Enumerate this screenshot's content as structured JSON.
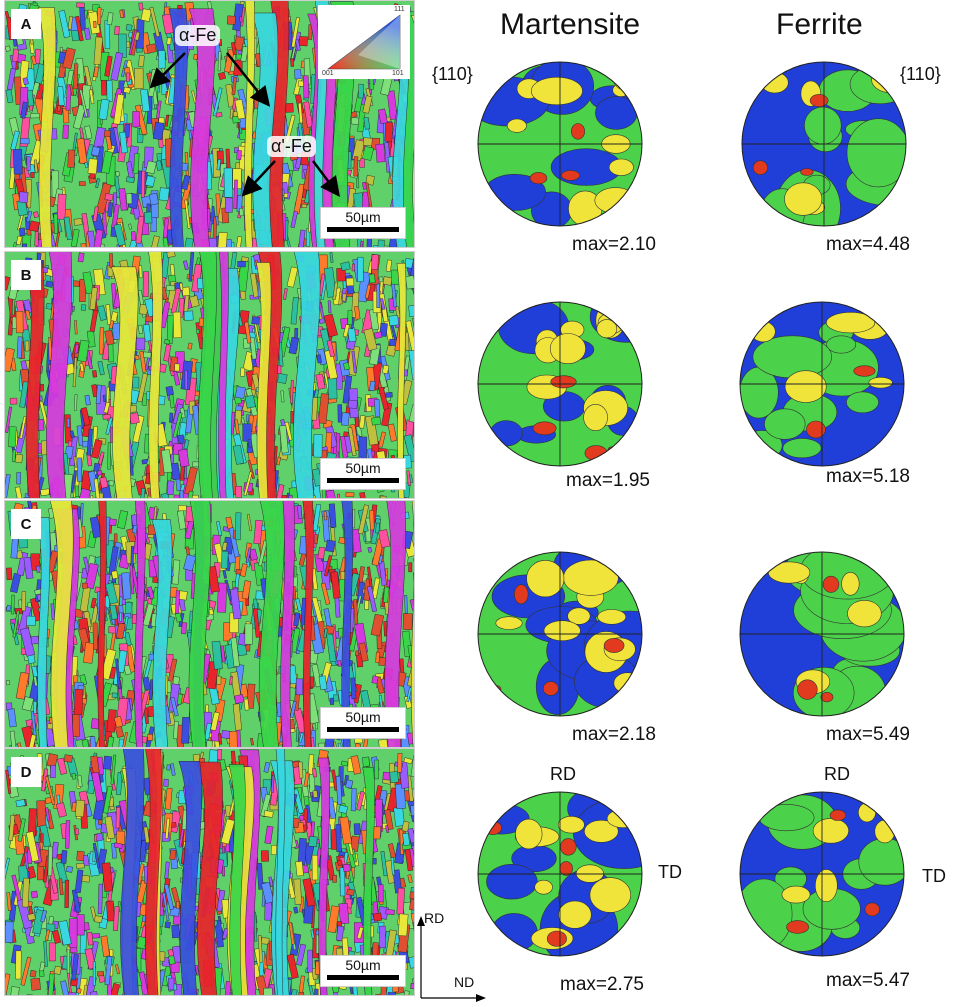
{
  "columns": {
    "martensite": "Martensite",
    "ferrite": "Ferrite"
  },
  "plane_label": "{110}",
  "panels": [
    {
      "letter": "A",
      "scale": "50µm",
      "mart_max": "max=2.10",
      "ferr_max": "max=4.48"
    },
    {
      "letter": "B",
      "scale": "50µm",
      "mart_max": "max=1.95",
      "ferr_max": "max=5.18"
    },
    {
      "letter": "C",
      "scale": "50µm",
      "mart_max": "max=2.18",
      "ferr_max": "max=5.49"
    },
    {
      "letter": "D",
      "scale": "50µm",
      "mart_max": "max=2.75",
      "ferr_max": "max=5.47"
    }
  ],
  "phase_labels": {
    "alpha": "α-Fe",
    "alpha_prime": "α'-Fe"
  },
  "ipf_legend": {
    "corner_001": "001",
    "corner_101": "101",
    "corner_111": "111"
  },
  "axis_labels": {
    "rd": "RD",
    "td": "TD",
    "nd": "ND"
  },
  "colors": {
    "pole_low": "#1f3fd8",
    "pole_mid": "#4cd14a",
    "pole_high": "#f0e43a",
    "pole_peak": "#e23a1e",
    "grain_red": "#e8242c",
    "grain_green": "#39d64a",
    "grain_blue": "#3a4fe0",
    "grain_magenta": "#d63adf",
    "grain_yellow": "#e8e83a",
    "grain_cyan": "#38d8e0"
  }
}
